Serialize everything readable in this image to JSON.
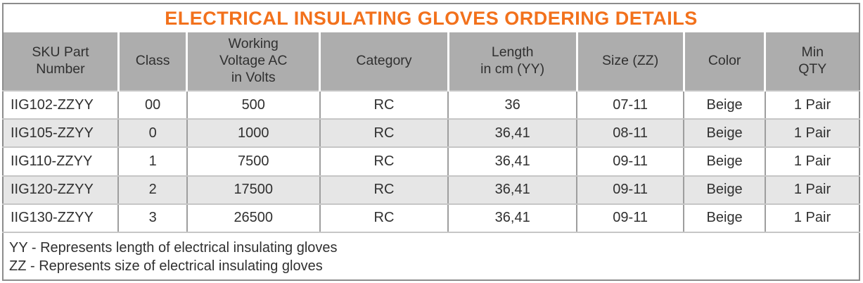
{
  "title": "ELECTRICAL INSULATING GLOVES ORDERING DETAILS",
  "table": {
    "headers": [
      "SKU Part\nNumber",
      "Class",
      "Working\nVoltage AC\nin Volts",
      "Category",
      "Length\nin cm (YY)",
      "Size (ZZ)",
      "Color",
      "Min\nQTY"
    ],
    "rows": [
      [
        "IIG102-ZZYY",
        "00",
        "500",
        "RC",
        "36",
        "07-11",
        "Beige",
        "1 Pair"
      ],
      [
        "IIG105-ZZYY",
        "0",
        "1000",
        "RC",
        "36,41",
        "08-11",
        "Beige",
        "1 Pair"
      ],
      [
        "IIG110-ZZYY",
        "1",
        "7500",
        "RC",
        "36,41",
        "09-11",
        "Beige",
        "1 Pair"
      ],
      [
        "IIG120-ZZYY",
        "2",
        "17500",
        "RC",
        "36,41",
        "09-11",
        "Beige",
        "1 Pair"
      ],
      [
        "IIG130-ZZYY",
        "3",
        "26500",
        "RC",
        "36,41",
        "09-11",
        "Beige",
        "1 Pair"
      ]
    ],
    "notes": [
      "YY - Represents length of electrical insulating gloves",
      "ZZ - Represents size of electrical insulating gloves"
    ]
  },
  "colors": {
    "accent_orange": "#F2711C",
    "header_bg": "#ADADAD",
    "stripe_bg": "#E6E6E6",
    "grid_vertical": "#9E9E9E",
    "grid_horizontal": "#C6C6C6",
    "outer_border": "#8C8C8C",
    "text_dark": "#303030"
  }
}
